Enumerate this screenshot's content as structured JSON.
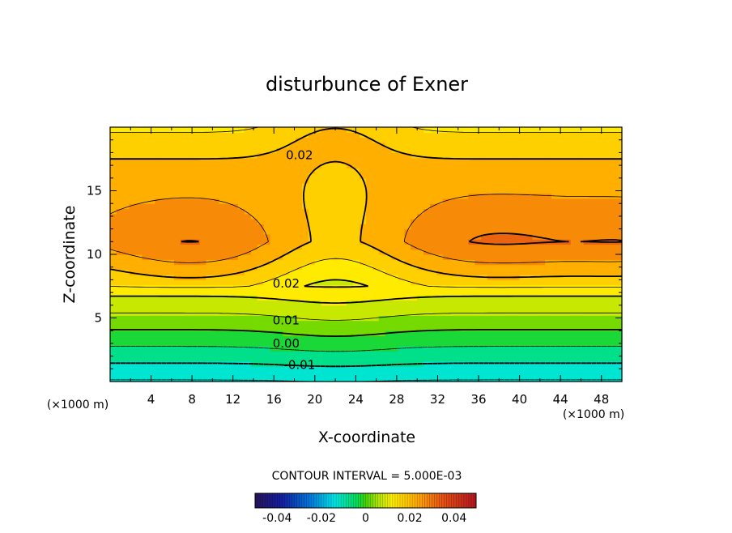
{
  "chart_data": {
    "type": "heatmap",
    "title": "disturbunce of Exner",
    "xlabel": "X-coordinate",
    "ylabel": "Z-coordinate",
    "x_unit": "(×1000 m)",
    "z_unit": "(×1000 m)",
    "xlim": [
      0,
      50
    ],
    "ylim": [
      0,
      20
    ],
    "x_ticks": [
      4,
      8,
      12,
      16,
      20,
      24,
      28,
      32,
      36,
      40,
      44,
      48
    ],
    "y_ticks": [
      5,
      10,
      15
    ],
    "contour_interval_text": "CONTOUR INTERVAL = 5.000E-03",
    "contour_interval": 0.005,
    "contour_labels": [
      {
        "text": "0.02",
        "x": 18.5,
        "z": 17.8
      },
      {
        "text": "0.02",
        "x": 17.2,
        "z": 7.7
      },
      {
        "text": "0.01",
        "x": 17.2,
        "z": 4.8
      },
      {
        "text": "0.00",
        "x": 17.2,
        "z": 3.0
      },
      {
        "text": "-0.01",
        "x": 18.5,
        "z": 1.3
      }
    ],
    "field_summary": {
      "min_approx": -0.015,
      "max_approx": 0.035,
      "maxima_centers": [
        {
          "x": 8,
          "z": 10.4
        },
        {
          "x": 37,
          "z": 10.6
        }
      ],
      "surface_value": -0.015
    },
    "colorbar": {
      "range": [
        -0.05,
        0.05
      ],
      "tick_values": [
        -0.04,
        -0.02,
        0,
        0.02,
        0.04
      ],
      "tick_labels": [
        "-0.04",
        "-0.02",
        "0",
        "0.02",
        "0.04"
      ]
    }
  }
}
